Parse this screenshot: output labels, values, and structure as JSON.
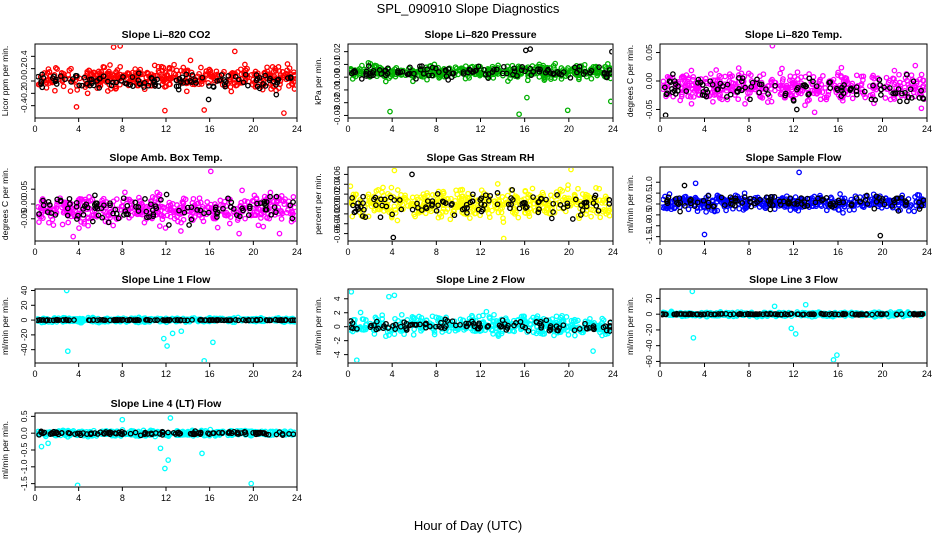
{
  "figure": {
    "title": "SPL_090910  Slope Diagnostics",
    "xlabel": "Hour of Day (UTC)"
  },
  "chart_data": [
    {
      "type": "scatter",
      "title": "Slope Li–820 CO2",
      "ylabel": "Licor ppm per min.",
      "xlim": [
        0,
        24
      ],
      "ylim": [
        -0.6,
        0.6
      ],
      "xticks": [
        "0",
        "4",
        "8",
        "12",
        "16",
        "20",
        "24"
      ],
      "yticks": [
        {
          "v": -0.4,
          "label": "-0.4"
        },
        {
          "v": -0.2,
          "label": "-0.2"
        },
        {
          "v": 0,
          "label": "0.0"
        },
        {
          "v": 0.2,
          "label": "0.2"
        },
        {
          "v": 0.4,
          "label": "0.4"
        }
      ],
      "series": [
        {
          "color": "#ff0000",
          "count": 420,
          "center": 0.05,
          "spread": 0.16,
          "seed": 11,
          "outliers": [
            [
              7.2,
              0.55
            ],
            [
              7.8,
              0.57
            ],
            [
              3.8,
              -0.42
            ],
            [
              11.9,
              -0.48
            ],
            [
              15.5,
              -0.47
            ],
            [
              22.8,
              -0.52
            ],
            [
              18.3,
              0.48
            ]
          ]
        },
        {
          "color": "#000000",
          "count": 110,
          "center": 0.0,
          "spread": 0.1,
          "seed": 12,
          "outliers": [
            [
              15.9,
              -0.3
            ],
            [
              22.1,
              -0.22
            ]
          ]
        }
      ]
    },
    {
      "type": "scatter",
      "title": "Slope Li–820 Pressure",
      "ylabel": "kPa per min.",
      "xlim": [
        0,
        24
      ],
      "ylim": [
        -0.032,
        0.026
      ],
      "xticks": [
        "0",
        "4",
        "8",
        "12",
        "16",
        "20",
        "24"
      ],
      "yticks": [
        {
          "v": -0.03,
          "label": "-0.03"
        },
        {
          "v": -0.02,
          "label": "-0.02"
        },
        {
          "v": -0.01,
          "label": "-0.01"
        },
        {
          "v": 0,
          "label": "0.00"
        },
        {
          "v": 0.01,
          "label": "0.01"
        },
        {
          "v": 0.02,
          "label": "0.02"
        }
      ],
      "series": [
        {
          "color": "#00b000",
          "count": 430,
          "center": 0.004,
          "spread": 0.0045,
          "seed": 21,
          "outliers": [
            [
              3.8,
              -0.027
            ],
            [
              15.5,
              -0.029
            ],
            [
              19.9,
              -0.026
            ],
            [
              16.2,
              -0.016
            ],
            [
              23.8,
              -0.019
            ],
            [
              7.6,
              -0.034
            ]
          ]
        },
        {
          "color": "#000000",
          "count": 110,
          "center": 0.004,
          "spread": 0.004,
          "seed": 22,
          "outliers": [
            [
              16.1,
              0.021
            ],
            [
              16.5,
              0.022
            ],
            [
              23.9,
              0.02
            ]
          ]
        }
      ]
    },
    {
      "type": "scatter",
      "title": "Slope Li–820 Temp.",
      "ylabel": "degrees C per min.",
      "xlim": [
        0,
        24
      ],
      "ylim": [
        -0.065,
        0.065
      ],
      "xticks": [
        "0",
        "4",
        "8",
        "12",
        "16",
        "20",
        "24"
      ],
      "yticks": [
        {
          "v": -0.05,
          "label": "-0.05"
        },
        {
          "v": 0,
          "label": "0.00"
        },
        {
          "v": 0.05,
          "label": "0.05"
        }
      ],
      "series": [
        {
          "color": "#ff00ff",
          "count": 420,
          "center": -0.01,
          "spread": 0.022,
          "seed": 31,
          "outliers": [
            [
              10.1,
              0.062
            ],
            [
              13.9,
              -0.055
            ],
            [
              23.5,
              -0.048
            ]
          ]
        },
        {
          "color": "#000000",
          "count": 110,
          "center": -0.015,
          "spread": 0.018,
          "seed": 32,
          "outliers": [
            [
              0.5,
              -0.06
            ],
            [
              12.3,
              -0.05
            ]
          ]
        }
      ]
    },
    {
      "type": "scatter",
      "title": "Slope Amb. Box Temp.",
      "ylabel": "degrees C per min.",
      "xlim": [
        0,
        24
      ],
      "ylim": [
        -0.125,
        0.125
      ],
      "xticks": [
        "0",
        "4",
        "8",
        "12",
        "16",
        "20",
        "24"
      ],
      "yticks": [
        {
          "v": -0.05,
          "label": "-0.05"
        },
        {
          "v": 0,
          "label": "0.00"
        },
        {
          "v": 0.05,
          "label": "0.05"
        }
      ],
      "series": [
        {
          "color": "#ff00ff",
          "count": 420,
          "center": -0.02,
          "spread": 0.04,
          "seed": 41,
          "outliers": [
            [
              16.1,
              0.11
            ],
            [
              3.5,
              -0.11
            ],
            [
              18.7,
              -0.1
            ],
            [
              22.4,
              -0.1
            ]
          ]
        },
        {
          "color": "#000000",
          "count": 110,
          "center": -0.02,
          "spread": 0.035,
          "seed": 42,
          "outliers": []
        }
      ]
    },
    {
      "type": "scatter",
      "title": "Slope Gas Stream RH",
      "ylabel": "percent per min.",
      "xlim": [
        0,
        24
      ],
      "ylim": [
        -0.075,
        0.075
      ],
      "xticks": [
        "0",
        "4",
        "8",
        "12",
        "16",
        "20",
        "24"
      ],
      "yticks": [
        {
          "v": -0.06,
          "label": "-0.06"
        },
        {
          "v": -0.04,
          "label": "-0.04"
        },
        {
          "v": -0.02,
          "label": "-0.02"
        },
        {
          "v": 0,
          "label": "0.00"
        },
        {
          "v": 0.02,
          "label": "0.02"
        },
        {
          "v": 0.04,
          "label": "0.04"
        },
        {
          "v": 0.06,
          "label": "0.06"
        }
      ],
      "series": [
        {
          "color": "#ffff00",
          "count": 450,
          "center": 0.0,
          "spread": 0.024,
          "seed": 51,
          "outliers": [
            [
              4.2,
              0.068
            ],
            [
              20.2,
              0.07
            ],
            [
              14.1,
              -0.07
            ]
          ]
        },
        {
          "color": "#000000",
          "count": 110,
          "center": 0.0,
          "spread": 0.02,
          "seed": 52,
          "outliers": [
            [
              4.1,
              -0.068
            ],
            [
              5.8,
              0.06
            ]
          ]
        }
      ]
    },
    {
      "type": "scatter",
      "title": "Slope Sample Flow",
      "ylabel": "ml/min per min.",
      "xlim": [
        0,
        24
      ],
      "ylim": [
        -1.7,
        1.7
      ],
      "xticks": [
        "0",
        "4",
        "8",
        "12",
        "16",
        "20",
        "24"
      ],
      "yticks": [
        {
          "v": -1.5,
          "label": "-1.5"
        },
        {
          "v": -1,
          "label": "-1.0"
        },
        {
          "v": -0.5,
          "label": "-0.5"
        },
        {
          "v": 0,
          "label": "0.0"
        },
        {
          "v": 0.5,
          "label": "0.5"
        },
        {
          "v": 1,
          "label": "1.0"
        }
      ],
      "series": [
        {
          "color": "#0000ff",
          "count": 420,
          "center": 0.05,
          "spread": 0.28,
          "seed": 61,
          "outliers": [
            [
              12.5,
              1.45
            ],
            [
              4,
              -1.4
            ],
            [
              3.2,
              0.95
            ]
          ]
        },
        {
          "color": "#000000",
          "count": 110,
          "center": 0.1,
          "spread": 0.25,
          "seed": 62,
          "outliers": [
            [
              19.8,
              -1.45
            ],
            [
              2.2,
              0.85
            ]
          ]
        }
      ]
    },
    {
      "type": "scatter",
      "title": "Slope Line 1 Flow",
      "ylabel": "ml/min per min.",
      "xlim": [
        0,
        24
      ],
      "ylim": [
        -58,
        42
      ],
      "xticks": [
        "0",
        "4",
        "8",
        "12",
        "16",
        "20",
        "24"
      ],
      "yticks": [
        {
          "v": -40,
          "label": "-40"
        },
        {
          "v": -20,
          "label": "-20"
        },
        {
          "v": 0,
          "label": "0"
        },
        {
          "v": 20,
          "label": "20"
        },
        {
          "v": 40,
          "label": "40"
        }
      ],
      "series": [
        {
          "color": "#00ffff",
          "count": 430,
          "center": 0,
          "spread": 2.4,
          "seed": 71,
          "outliers": [
            [
              2.9,
              40
            ],
            [
              3,
              -42
            ],
            [
              11.8,
              -25
            ],
            [
              12.1,
              -35
            ],
            [
              15.5,
              -55
            ],
            [
              12.6,
              -18
            ],
            [
              16.3,
              -30
            ],
            [
              13.4,
              -15
            ]
          ]
        },
        {
          "color": "#000000",
          "count": 130,
          "center": 0,
          "spread": 0.5,
          "seed": 72,
          "outliers": []
        }
      ]
    },
    {
      "type": "scatter",
      "title": "Slope Line 2 Flow",
      "ylabel": "ml/min per min.",
      "xlim": [
        0,
        24
      ],
      "ylim": [
        -5.2,
        5.4
      ],
      "xticks": [
        "0",
        "4",
        "8",
        "12",
        "16",
        "20",
        "24"
      ],
      "yticks": [
        {
          "v": -4,
          "label": "-4"
        },
        {
          "v": -2,
          "label": "-2"
        },
        {
          "v": 0,
          "label": "0"
        },
        {
          "v": 2,
          "label": "2"
        },
        {
          "v": 4,
          "label": "4"
        }
      ],
      "series": [
        {
          "color": "#00ffff",
          "count": 430,
          "center": 0.2,
          "spread": 1.2,
          "seed": 81,
          "outliers": [
            [
              0.3,
              5
            ],
            [
              4.2,
              4.5
            ],
            [
              3.7,
              4.3
            ],
            [
              0.8,
              -4.8
            ],
            [
              22.2,
              -3.5
            ]
          ]
        },
        {
          "color": "#000000",
          "count": 110,
          "center": 0.1,
          "spread": 0.55,
          "seed": 82,
          "outliers": []
        }
      ]
    },
    {
      "type": "scatter",
      "title": "Slope Line 3 Flow",
      "ylabel": "ml/min per min.",
      "xlim": [
        0,
        24
      ],
      "ylim": [
        -62,
        32
      ],
      "xticks": [
        "0",
        "4",
        "8",
        "12",
        "16",
        "20",
        "24"
      ],
      "yticks": [
        {
          "v": -60,
          "label": "-60"
        },
        {
          "v": -40,
          "label": "-40"
        },
        {
          "v": -20,
          "label": "-20"
        },
        {
          "v": 0,
          "label": "0"
        },
        {
          "v": 20,
          "label": "20"
        }
      ],
      "series": [
        {
          "color": "#00ffff",
          "count": 430,
          "center": 0,
          "spread": 2.2,
          "seed": 91,
          "outliers": [
            [
              2.9,
              29
            ],
            [
              3,
              -30
            ],
            [
              11.8,
              -18
            ],
            [
              12.2,
              -25
            ],
            [
              15.6,
              -58
            ],
            [
              15.9,
              -52
            ],
            [
              13.1,
              12
            ],
            [
              10.3,
              10
            ]
          ]
        },
        {
          "color": "#000000",
          "count": 130,
          "center": 0,
          "spread": 0.6,
          "seed": 92,
          "outliers": []
        }
      ]
    },
    {
      "type": "scatter",
      "title": "Slope Line 4 (LT) Flow",
      "ylabel": "ml/min per min.",
      "xlim": [
        0,
        24
      ],
      "ylim": [
        -1.6,
        0.6
      ],
      "xticks": [
        "0",
        "4",
        "8",
        "12",
        "16",
        "20",
        "24"
      ],
      "yticks": [
        {
          "v": -1.5,
          "label": "-1.5"
        },
        {
          "v": -1,
          "label": "-1.0"
        },
        {
          "v": -0.5,
          "label": "-0.5"
        },
        {
          "v": 0,
          "label": "0.0"
        },
        {
          "v": 0.5,
          "label": "0.5"
        }
      ],
      "series": [
        {
          "color": "#00ffff",
          "count": 430,
          "center": 0,
          "spread": 0.07,
          "seed": 101,
          "outliers": [
            [
              3.9,
              -1.55
            ],
            [
              11.9,
              -1.05
            ],
            [
              12.2,
              -0.8
            ],
            [
              15.3,
              -0.6
            ],
            [
              19.8,
              -1.5
            ],
            [
              12.4,
              0.45
            ],
            [
              8,
              0.4
            ],
            [
              11.5,
              -0.45
            ],
            [
              0.6,
              -0.4
            ],
            [
              1.2,
              -0.3
            ]
          ]
        },
        {
          "color": "#000000",
          "count": 120,
          "center": 0,
          "spread": 0.04,
          "seed": 102,
          "outliers": []
        }
      ]
    }
  ]
}
